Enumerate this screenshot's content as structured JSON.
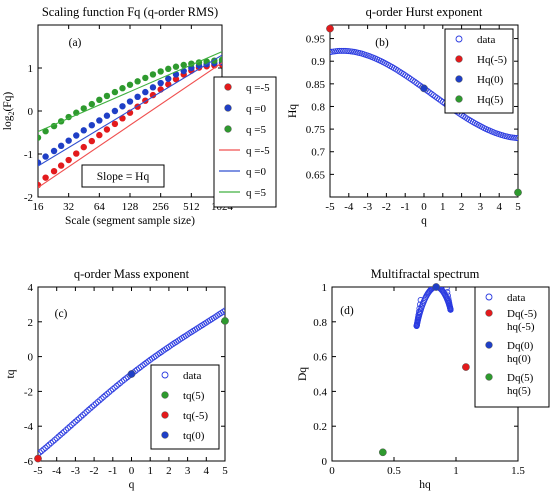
{
  "colors": {
    "red": "#e31a1c",
    "blue": "#1f3fc6",
    "green": "#2e9a2e",
    "data_marker": "#2b3be0",
    "line_red": "#f05050",
    "line_blue": "#3050d0",
    "line_green": "#40b040"
  },
  "chart_data": [
    {
      "type": "scatter",
      "title": "Scaling function Fq (q-order RMS)",
      "panel_label": "(a)",
      "xlabel": "Scale (segment sample size)",
      "ylabel": "log2(Fq)",
      "ylabel_main": "log",
      "ylabel_sub": "2",
      "ylabel_rest": "(Fq)",
      "x_scale": "log2",
      "xlim": [
        16,
        1024
      ],
      "ylim": [
        -2,
        2
      ],
      "xticks": [
        16,
        32,
        64,
        128,
        256,
        512,
        1024
      ],
      "yticks": [
        -2,
        -1,
        0,
        1
      ],
      "annotation": "Slope = Hq",
      "legend": [
        "q =-5",
        "q =0",
        "q =5",
        "q =-5",
        "q =0",
        "q =5"
      ],
      "series": [
        {
          "name": "q =-5",
          "kind": "points",
          "color": "red",
          "x": [
            16,
            19,
            23,
            27,
            32,
            38,
            45,
            54,
            64,
            76,
            91,
            108,
            128,
            152,
            181,
            215,
            256,
            304,
            362,
            431,
            512,
            609,
            724,
            861,
            1024
          ],
          "y": [
            -1.72,
            -1.55,
            -1.4,
            -1.27,
            -1.14,
            -0.99,
            -0.84,
            -0.7,
            -0.56,
            -0.43,
            -0.3,
            -0.17,
            -0.04,
            0.1,
            0.24,
            0.37,
            0.5,
            0.62,
            0.74,
            0.85,
            0.94,
            1.01,
            1.04,
            1.06,
            1.08
          ]
        },
        {
          "name": "q =0",
          "kind": "points",
          "color": "blue",
          "x": [
            16,
            19,
            23,
            27,
            32,
            38,
            45,
            54,
            64,
            76,
            91,
            108,
            128,
            152,
            181,
            215,
            256,
            304,
            362,
            431,
            512,
            609,
            724,
            861,
            1024
          ],
          "y": [
            -1.2,
            -1.06,
            -0.93,
            -0.81,
            -0.69,
            -0.57,
            -0.45,
            -0.33,
            -0.22,
            -0.11,
            0.0,
            0.11,
            0.22,
            0.33,
            0.44,
            0.55,
            0.65,
            0.75,
            0.85,
            0.93,
            1.0,
            1.06,
            1.09,
            1.11,
            1.13
          ]
        },
        {
          "name": "q =5",
          "kind": "points",
          "color": "green",
          "x": [
            16,
            19,
            23,
            27,
            32,
            38,
            45,
            54,
            64,
            76,
            91,
            108,
            128,
            152,
            181,
            215,
            256,
            304,
            362,
            431,
            512,
            609,
            724,
            861,
            1024
          ],
          "y": [
            -0.62,
            -0.47,
            -0.35,
            -0.24,
            -0.14,
            -0.04,
            0.06,
            0.16,
            0.26,
            0.35,
            0.44,
            0.53,
            0.61,
            0.69,
            0.77,
            0.85,
            0.92,
            0.98,
            1.03,
            1.07,
            1.1,
            1.13,
            1.15,
            1.17,
            1.19
          ]
        },
        {
          "name": "q =-5",
          "kind": "line",
          "color": "line_red",
          "x": [
            16,
            1024
          ],
          "y": [
            -1.78,
            1.12
          ]
        },
        {
          "name": "q =0",
          "kind": "line",
          "color": "line_blue",
          "x": [
            16,
            1024
          ],
          "y": [
            -1.28,
            1.3
          ]
        },
        {
          "name": "q =5",
          "kind": "line",
          "color": "line_green",
          "x": [
            16,
            1024
          ],
          "y": [
            -0.48,
            1.38
          ]
        }
      ]
    },
    {
      "type": "scatter",
      "title": "q-order Hurst exponent",
      "panel_label": "(b)",
      "xlabel": "q",
      "ylabel": "Hq",
      "xlim": [
        -5,
        5
      ],
      "ylim": [
        0.6,
        0.98
      ],
      "xticks": [
        -5,
        -4,
        -3,
        -2,
        -1,
        0,
        1,
        2,
        3,
        4,
        5
      ],
      "yticks": [
        0.65,
        0.7,
        0.75,
        0.8,
        0.85,
        0.9,
        0.95
      ],
      "legend": [
        "data",
        "Hq(-5)",
        "Hq(0)",
        "Hq(5)"
      ],
      "series": [
        {
          "name": "data",
          "kind": "open",
          "color": "data_marker",
          "q_from": -5,
          "q_to": 5,
          "q_step": 0.1,
          "curve": "Hq"
        },
        {
          "name": "Hq(-5)",
          "kind": "filled",
          "color": "red",
          "x": [
            -5
          ],
          "y": [
            0.972
          ]
        },
        {
          "name": "Hq(0)",
          "kind": "filled",
          "color": "blue",
          "x": [
            0
          ],
          "y": [
            0.84
          ]
        },
        {
          "name": "Hq(5)",
          "kind": "filled",
          "color": "green",
          "x": [
            5
          ],
          "y": [
            0.61
          ]
        }
      ]
    },
    {
      "type": "scatter",
      "title": "q-order Mass exponent",
      "panel_label": "(c)",
      "xlabel": "q",
      "ylabel": "tq",
      "xlim": [
        -5,
        5
      ],
      "ylim": [
        -6,
        4
      ],
      "xticks": [
        -5,
        -4,
        -3,
        -2,
        -1,
        0,
        1,
        2,
        3,
        4,
        5
      ],
      "yticks": [
        -6,
        -4,
        -2,
        0,
        2,
        4
      ],
      "legend": [
        "data",
        "tq(5)",
        "tq(-5)",
        "tq(0)"
      ],
      "series": [
        {
          "name": "data",
          "kind": "open",
          "color": "data_marker",
          "q_from": -5,
          "q_to": 5,
          "q_step": 0.1,
          "curve": "tq"
        },
        {
          "name": "tq(5)",
          "kind": "filled",
          "color": "green",
          "x": [
            5
          ],
          "y": [
            2.05
          ]
        },
        {
          "name": "tq(-5)",
          "kind": "filled",
          "color": "red",
          "x": [
            -5
          ],
          "y": [
            -5.86
          ]
        },
        {
          "name": "tq(0)",
          "kind": "filled",
          "color": "blue",
          "x": [
            0
          ],
          "y": [
            -1.0
          ]
        }
      ]
    },
    {
      "type": "scatter",
      "title": "Multifractal spectrum",
      "panel_label": "(d)",
      "xlabel": "hq",
      "ylabel": "Dq",
      "xlim": [
        0,
        1.5
      ],
      "ylim": [
        0,
        1
      ],
      "xticks": [
        0,
        0.5,
        1,
        1.5
      ],
      "yticks": [
        0,
        0.2,
        0.4,
        0.6,
        0.8,
        1
      ],
      "legend": [
        "data",
        "Dq(-5) hq(-5)",
        "Dq(0) hq(0)",
        "Dq(5) hq(5)"
      ],
      "legend_lines": [
        [
          "data"
        ],
        [
          "Dq(-5)",
          "hq(-5)"
        ],
        [
          "Dq(0)",
          "hq(0)"
        ],
        [
          "Dq(5)",
          "hq(5)"
        ]
      ],
      "series": [
        {
          "name": "data",
          "kind": "open",
          "color": "data_marker",
          "q_from": -5,
          "q_to": 5,
          "q_step": 0.1,
          "curve": "spectrum"
        },
        {
          "name": "Dq(-5) hq(-5)",
          "kind": "filled",
          "color": "red",
          "x": [
            1.08
          ],
          "y": [
            0.54
          ]
        },
        {
          "name": "Dq(0) hq(0)",
          "kind": "filled",
          "color": "blue",
          "x": [
            0.84
          ],
          "y": [
            1.0
          ]
        },
        {
          "name": "Dq(5) hq(5)",
          "kind": "filled",
          "color": "green",
          "x": [
            0.41
          ],
          "y": [
            0.05
          ]
        }
      ]
    }
  ]
}
